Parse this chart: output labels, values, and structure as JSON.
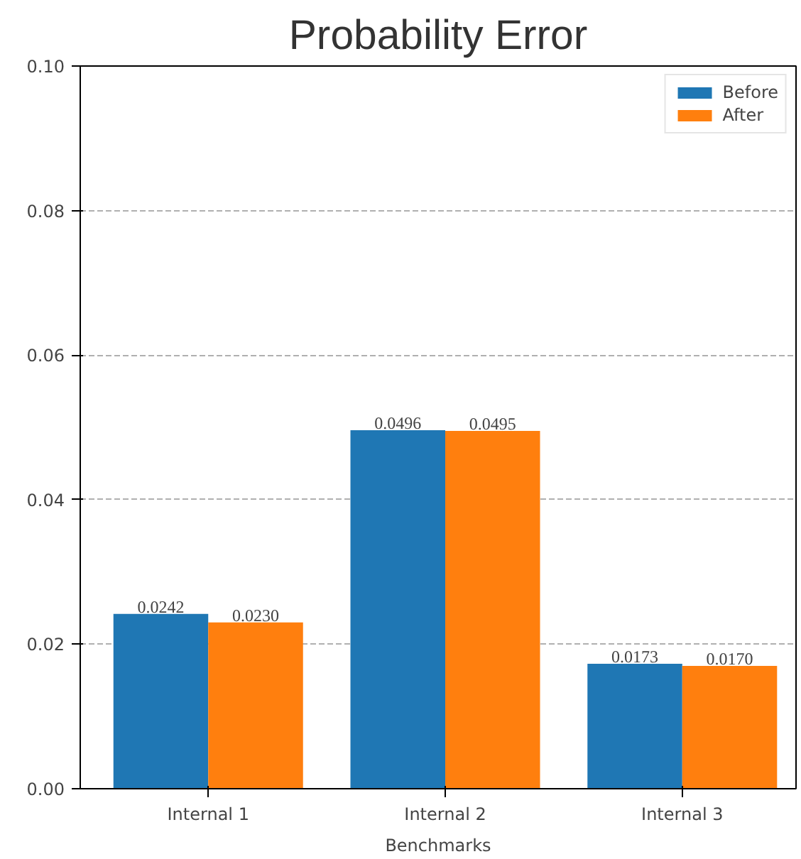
{
  "chart_data": {
    "type": "bar",
    "title": "Probability Error",
    "xlabel": "Benchmarks",
    "categories": [
      "Internal 1",
      "Internal 2",
      "Internal 3"
    ],
    "series": [
      {
        "name": "Before",
        "color": "#1f77b4",
        "values": [
          0.0242,
          0.0496,
          0.0173
        ],
        "value_labels": [
          "0.0242",
          "0.0496",
          "0.0173"
        ]
      },
      {
        "name": "After",
        "color": "#ff7f0e",
        "values": [
          0.023,
          0.0495,
          0.017
        ],
        "value_labels": [
          "0.0230",
          "0.0495",
          "0.0170"
        ]
      }
    ],
    "ylim": [
      0,
      0.1
    ],
    "yticks": [
      {
        "value": 0,
        "label": "0.00"
      },
      {
        "value": 0.02,
        "label": "0.02"
      },
      {
        "value": 0.04,
        "label": "0.04"
      },
      {
        "value": 0.06,
        "label": "0.06"
      },
      {
        "value": 0.08,
        "label": "0.08"
      },
      {
        "value": 0.1,
        "label": "0.10"
      }
    ],
    "grid": "y",
    "legend": "top right"
  }
}
